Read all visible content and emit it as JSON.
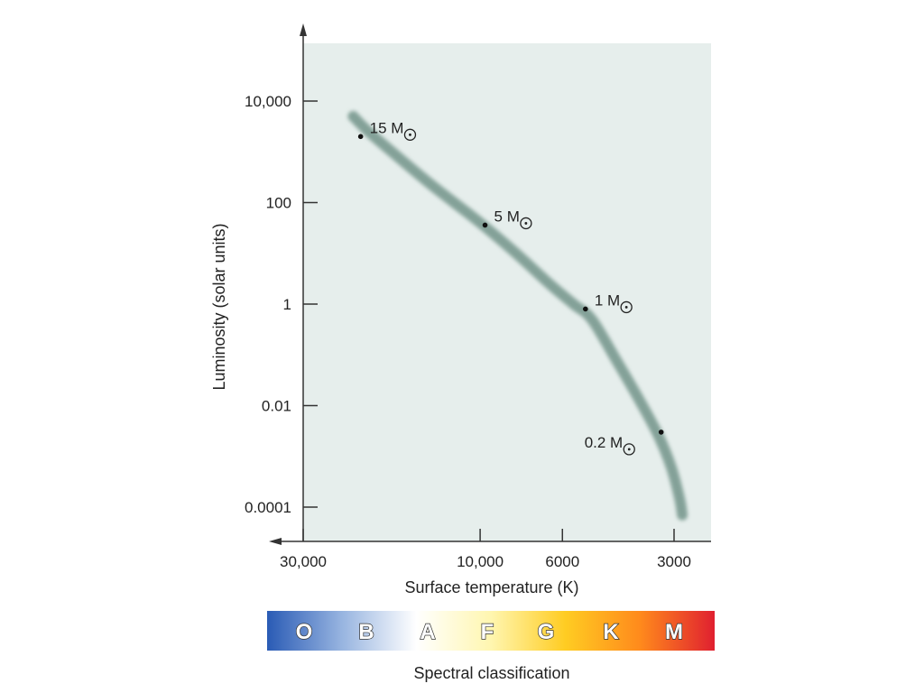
{
  "chart_data": {
    "type": "line",
    "title": "",
    "xlabel": "Surface temperature (K)",
    "ylabel": "Luminosity (solar units)",
    "x_scale": "log-reversed",
    "y_scale": "log",
    "x_ticks": [
      {
        "value": 30000,
        "label": "30,000"
      },
      {
        "value": 10000,
        "label": "10,000"
      },
      {
        "value": 6000,
        "label": "6000"
      },
      {
        "value": 3000,
        "label": "3000"
      }
    ],
    "y_ticks": [
      {
        "value": 10000,
        "label": "10,000"
      },
      {
        "value": 100,
        "label": "100"
      },
      {
        "value": 1,
        "label": "1"
      },
      {
        "value": 0.01,
        "label": "0.01"
      },
      {
        "value": 0.0001,
        "label": "0.0001"
      }
    ],
    "series": [
      {
        "x": [
          22000,
          20000,
          17000,
          13500,
          10000,
          8000,
          6500,
          5600,
          5000,
          4300,
          3700,
          3300,
          3050,
          2900,
          2850
        ],
        "y": [
          5000,
          2500,
          900,
          220,
          40,
          10,
          2.5,
          1,
          0.5,
          0.08,
          0.012,
          0.0025,
          0.0006,
          0.00015,
          7e-05
        ]
      }
    ],
    "annotations": [
      {
        "x": 21000,
        "y": 2000,
        "label": "15 M",
        "symbol": "⊙",
        "label_side": "right"
      },
      {
        "x": 9700,
        "y": 36,
        "label": "5 M",
        "symbol": "⊙",
        "label_side": "right"
      },
      {
        "x": 5200,
        "y": 0.8,
        "label": "1 M",
        "symbol": "⊙",
        "label_side": "right"
      },
      {
        "x": 3250,
        "y": 0.003,
        "label": "0.2 M",
        "symbol": "⊙",
        "label_side": "left-below"
      }
    ],
    "colors": {
      "plot_background": "#e6eeec",
      "curve": "#88a59c",
      "axis": "#333333"
    }
  },
  "spectral": {
    "title": "Spectral classification",
    "classes": [
      "O",
      "B",
      "A",
      "F",
      "G",
      "K",
      "M"
    ],
    "gradient": [
      "#2a5bb5",
      "#97b4e0",
      "#ffffff",
      "#fff6b0",
      "#ffcc22",
      "#ff8a1c",
      "#e02030"
    ]
  }
}
